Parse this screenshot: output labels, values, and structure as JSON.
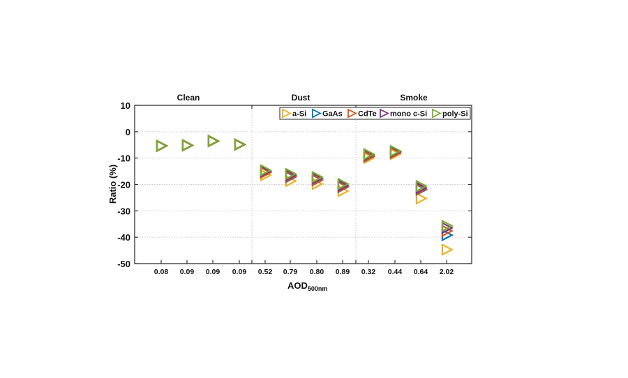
{
  "chart_data": {
    "type": "scatter",
    "title": "",
    "xlabel": "AOD",
    "xlabel_subscript": "500nm",
    "ylabel": "Ratio (%)",
    "ylim": [
      -50,
      10
    ],
    "yticks": [
      10,
      0,
      -10,
      -20,
      -30,
      -40,
      -50
    ],
    "grid": true,
    "legend_position": "top-right, horizontal",
    "groups": [
      {
        "name": "Clean",
        "categories": [
          "0.08",
          "0.09",
          "0.09",
          "0.09"
        ]
      },
      {
        "name": "Dust",
        "categories": [
          "0.52",
          "0.79",
          "0.80",
          "0.89"
        ]
      },
      {
        "name": "Smoke",
        "categories": [
          "0.32",
          "0.44",
          "0.64",
          "2.02"
        ]
      }
    ],
    "categories": [
      "0.08",
      "0.09",
      "0.09",
      "0.09",
      "0.52",
      "0.79",
      "0.80",
      "0.89",
      "0.32",
      "0.44",
      "0.64",
      "2.02"
    ],
    "series": [
      {
        "name": "a-Si",
        "color": "#EDB120",
        "values": [
          -5.4,
          -5.2,
          -3.4,
          -4.9,
          -16.5,
          -18.7,
          -19.8,
          -22.5,
          -10.0,
          -8.5,
          -25.3,
          -44.7
        ]
      },
      {
        "name": "GaAs",
        "color": "#0072BD",
        "values": [
          -5.4,
          -5.2,
          -3.6,
          -4.9,
          -15.5,
          -17.2,
          -18.4,
          -21.0,
          -9.4,
          -8.0,
          -22.0,
          -39.2
        ]
      },
      {
        "name": "CdTe",
        "color": "#D95319",
        "values": [
          -5.4,
          -5.2,
          -3.6,
          -4.9,
          -15.5,
          -17.0,
          -18.3,
          -20.9,
          -9.3,
          -8.0,
          -21.8,
          -37.6
        ]
      },
      {
        "name": "mono c-Si",
        "color": "#7E2F8E",
        "values": [
          -5.3,
          -5.1,
          -3.5,
          -4.8,
          -15.0,
          -16.5,
          -17.7,
          -20.4,
          -8.8,
          -7.6,
          -21.3,
          -36.5
        ]
      },
      {
        "name": "poly-Si",
        "color": "#77AC30",
        "values": [
          -5.3,
          -5.1,
          -3.5,
          -4.8,
          -14.6,
          -16.0,
          -17.2,
          -19.8,
          -8.5,
          -7.3,
          -20.6,
          -35.7
        ]
      }
    ]
  }
}
